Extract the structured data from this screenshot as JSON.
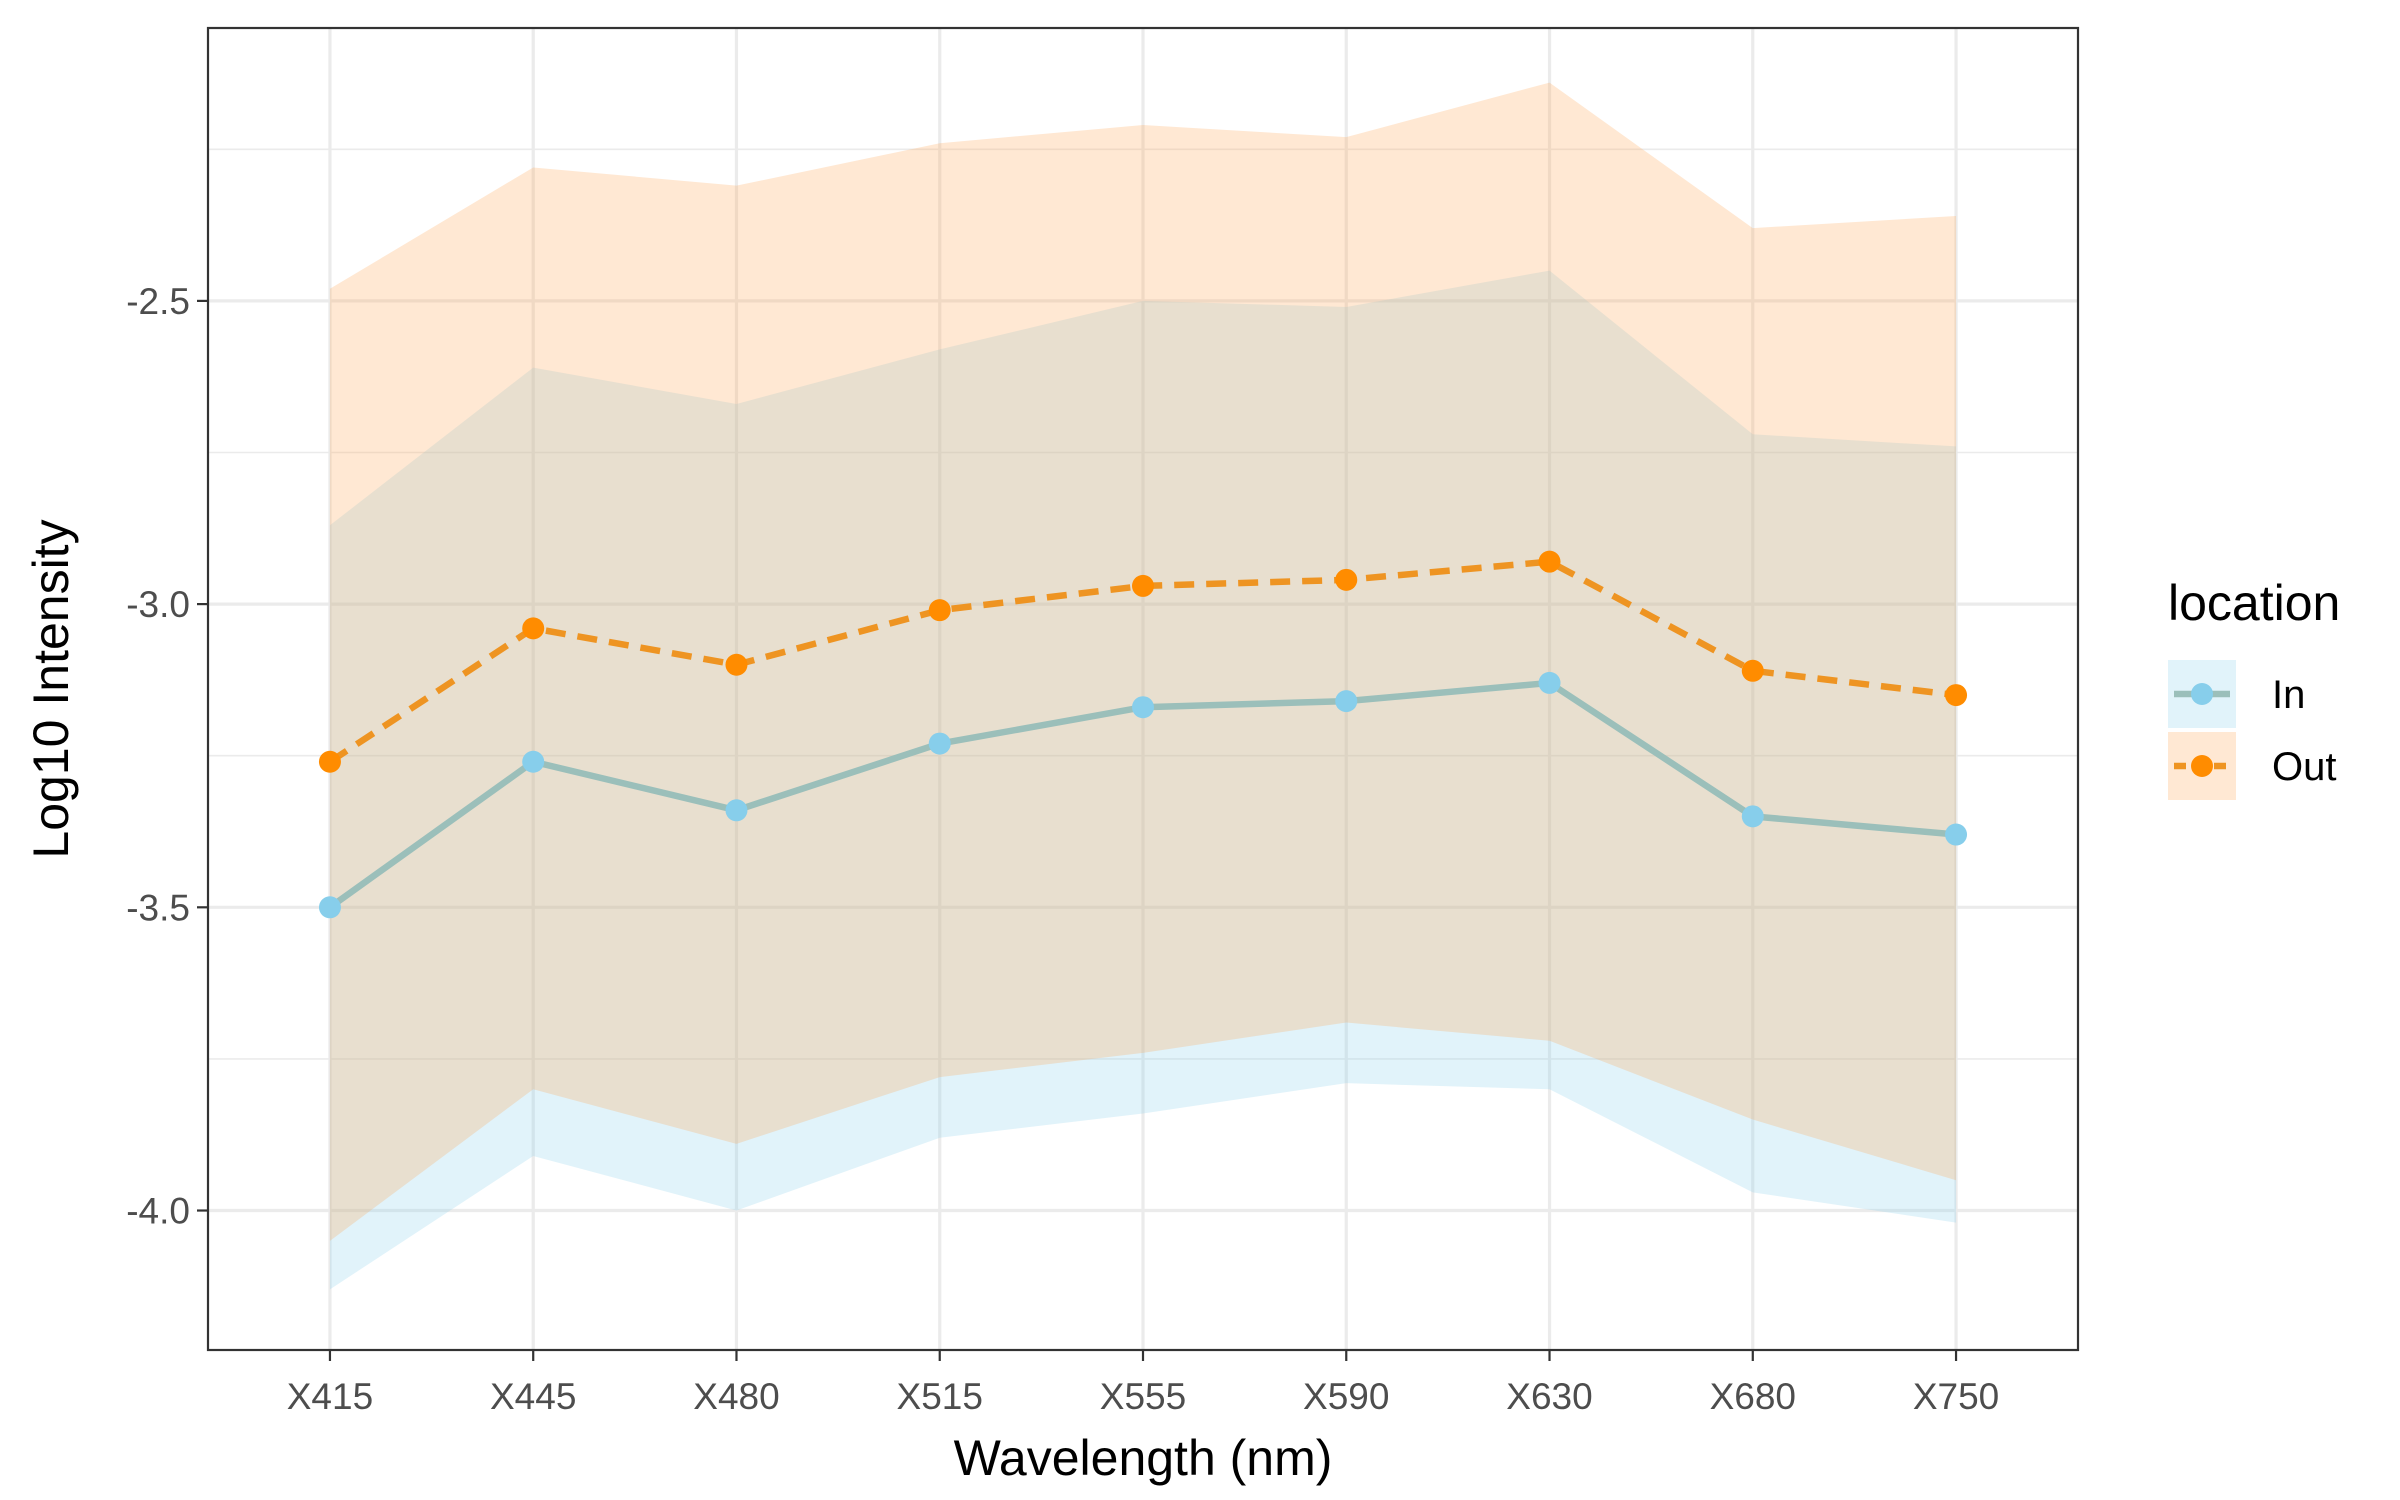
{
  "chart_data": {
    "type": "line",
    "xlabel": "Wavelength (nm)",
    "ylabel": "Log10 Intensity",
    "categories": [
      "X415",
      "X445",
      "X480",
      "X515",
      "X555",
      "X590",
      "X630",
      "X680",
      "X750"
    ],
    "ylim": [
      -4.23,
      -2.05
    ],
    "yticks": [
      -4.0,
      -3.5,
      -3.0,
      -2.5
    ],
    "ytick_labels": [
      "-4.0",
      "-3.5",
      "-3.0",
      "-2.5"
    ],
    "grid": true,
    "legend": {
      "title": "location",
      "position": "right"
    },
    "series": [
      {
        "name": "In",
        "color": "#87CEEB",
        "line_color": "#9BBFBA",
        "line_style": "solid",
        "ribbon_color": "#87CEEB",
        "values": [
          -3.5,
          -3.26,
          -3.34,
          -3.23,
          -3.17,
          -3.16,
          -3.13,
          -3.35,
          -3.38
        ],
        "lower": [
          -4.13,
          -3.91,
          -4.0,
          -3.88,
          -3.84,
          -3.79,
          -3.8,
          -3.97,
          -4.02
        ],
        "upper": [
          -2.87,
          -2.61,
          -2.67,
          -2.58,
          -2.5,
          -2.51,
          -2.45,
          -2.72,
          -2.74
        ]
      },
      {
        "name": "Out",
        "color": "#FF8C00",
        "line_color": "#EE9422",
        "line_style": "dashed",
        "ribbon_color": "#FFA54F",
        "values": [
          -3.26,
          -3.04,
          -3.1,
          -3.01,
          -2.97,
          -2.96,
          -2.93,
          -3.11,
          -3.15
        ],
        "lower": [
          -4.05,
          -3.8,
          -3.89,
          -3.78,
          -3.74,
          -3.69,
          -3.72,
          -3.85,
          -3.95
        ],
        "upper": [
          -2.48,
          -2.28,
          -2.31,
          -2.24,
          -2.21,
          -2.23,
          -2.14,
          -2.38,
          -2.36
        ]
      }
    ]
  }
}
